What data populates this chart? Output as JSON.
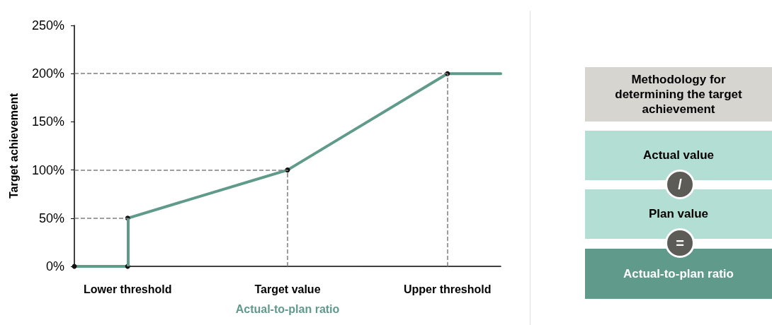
{
  "chart_data": [
    {
      "type": "line",
      "xlabel": "Actual-to-plan ratio",
      "ylabel": "Target achievement",
      "categories": [
        null,
        "Lower threshold",
        null,
        null,
        "Target value",
        null,
        null,
        "Upper threshold",
        null
      ],
      "series": [
        {
          "color": "#5f9a8a",
          "values": [
            0,
            0,
            null,
            null,
            null,
            null,
            null,
            null,
            null
          ]
        },
        {
          "color": "#5f9a8a",
          "values": [
            null,
            50,
            null,
            null,
            100,
            null,
            null,
            200,
            null
          ]
        },
        {
          "color": "#5f9a8a",
          "marker": "none",
          "values": [
            null,
            null,
            null,
            null,
            null,
            null,
            null,
            200,
            200
          ]
        }
      ],
      "ylim": [
        0,
        250
      ],
      "yticks": [
        {
          "value": 0,
          "label": "0%"
        },
        {
          "value": 50,
          "label": "50%"
        },
        {
          "value": 100,
          "label": "100%"
        },
        {
          "value": 150,
          "label": "150%"
        },
        {
          "value": 200,
          "label": "200%"
        },
        {
          "value": 250,
          "label": "250%"
        }
      ],
      "ref_lines": [
        {
          "axis": "x",
          "value": "Lower threshold",
          "color": "#5f9a8a",
          "line_style": "solid"
        },
        {
          "axis": "y",
          "value": 50,
          "color": "#7f7f7f",
          "line_style": "dashed"
        },
        {
          "axis": "y",
          "value": 100,
          "color": "#7f7f7f",
          "line_style": "dashed"
        },
        {
          "axis": "y",
          "value": 200,
          "color": "#7f7f7f",
          "line_style": "dashed"
        },
        {
          "axis": "x",
          "value": "Target value",
          "color": "#7f7f7f",
          "line_style": "dashed"
        },
        {
          "axis": "x",
          "value": "Upper threshold",
          "color": "#7f7f7f",
          "line_style": "dashed"
        }
      ],
      "grid": false,
      "marker": "circle",
      "line_style": "solid"
    },
    {
      "type": "other",
      "title": "Methodology for determining the target achievement",
      "annotations": [
        "Actual value",
        "/",
        "Plan value",
        "=",
        "Actual-to-plan ratio"
      ]
    }
  ]
}
